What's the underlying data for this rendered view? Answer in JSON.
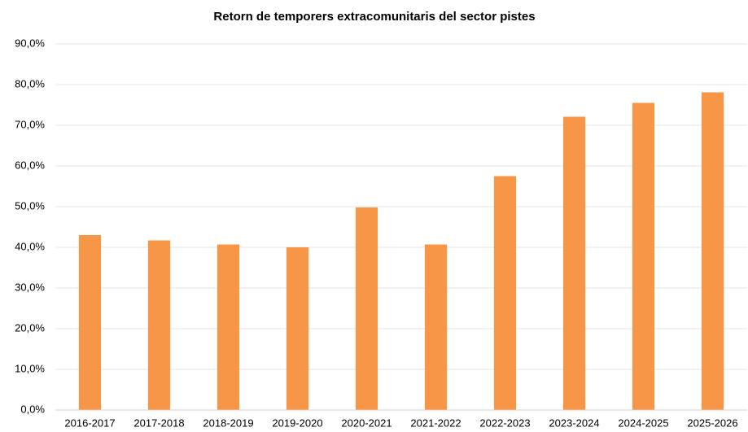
{
  "chart_data": {
    "type": "bar",
    "title": "Retorn de temporers extracomunitaris del sector pistes",
    "categories": [
      "2016-2017",
      "2017-2018",
      "2018-2019",
      "2019-2020",
      "2020-2021",
      "2021-2022",
      "2022-2023",
      "2023-2024",
      "2024-2025",
      "2025-2026"
    ],
    "values": [
      43.0,
      41.7,
      40.7,
      40.0,
      49.8,
      40.7,
      57.5,
      72.1,
      75.5,
      78.1
    ],
    "color": "#f79646",
    "ylim": [
      0,
      90
    ],
    "yticks": [
      {
        "value": 0,
        "label": "0,0%"
      },
      {
        "value": 10,
        "label": "10,0%"
      },
      {
        "value": 20,
        "label": "20,0%"
      },
      {
        "value": 30,
        "label": "30,0%"
      },
      {
        "value": 40,
        "label": "40,0%"
      },
      {
        "value": 50,
        "label": "50,0%"
      },
      {
        "value": 60,
        "label": "60,0%"
      },
      {
        "value": 70,
        "label": "70,0%"
      },
      {
        "value": 80,
        "label": "80,0%"
      },
      {
        "value": 90,
        "label": "90,0%"
      }
    ],
    "grid": true
  }
}
